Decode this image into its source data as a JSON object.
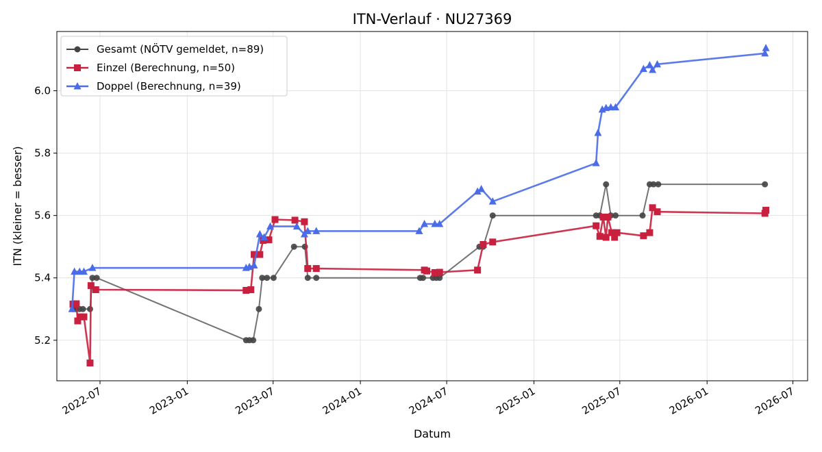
{
  "chart_data": {
    "type": "line",
    "title": "ITN-Verlauf · NU27369",
    "xlabel": "Datum",
    "ylabel": "ITN  (kleiner = besser)",
    "xlim": [
      "2022-04-01",
      "2026-08-01"
    ],
    "ylim": [
      5.07,
      6.19
    ],
    "x_ticks": [
      "2022-07-01",
      "2023-01-01",
      "2023-07-01",
      "2024-01-01",
      "2024-07-01",
      "2025-01-01",
      "2025-07-01",
      "2026-01-01",
      "2026-07-01"
    ],
    "x_tick_labels": [
      "2022-07",
      "2023-01",
      "2023-07",
      "2024-01",
      "2024-07",
      "2025-01",
      "2025-07",
      "2026-01",
      "2026-07"
    ],
    "y_ticks": [
      5.2,
      5.4,
      5.6,
      5.8,
      6.0
    ],
    "y_tick_labels": [
      "5.2",
      "5.4",
      "5.6",
      "5.8",
      "6.0"
    ],
    "grid": true,
    "legend_position": "top-left",
    "series": [
      {
        "name": "Gesamt (NÖTV gemeldet, n=89)",
        "color": "#444444",
        "marker": "circle",
        "points": [
          [
            "2022-05-05",
            5.3
          ],
          [
            "2022-05-10",
            5.3
          ],
          [
            "2022-05-19",
            5.3
          ],
          [
            "2022-05-26",
            5.3
          ],
          [
            "2022-06-10",
            5.3
          ],
          [
            "2022-06-15",
            5.4
          ],
          [
            "2022-06-24",
            5.4
          ],
          [
            "2023-05-05",
            5.2
          ],
          [
            "2023-05-12",
            5.2
          ],
          [
            "2023-05-20",
            5.2
          ],
          [
            "2023-06-01",
            5.3
          ],
          [
            "2023-06-08",
            5.4
          ],
          [
            "2023-06-18",
            5.4
          ],
          [
            "2023-07-02",
            5.4
          ],
          [
            "2023-08-14",
            5.5
          ],
          [
            "2023-09-06",
            5.5
          ],
          [
            "2023-09-12",
            5.4
          ],
          [
            "2023-09-30",
            5.4
          ],
          [
            "2024-05-06",
            5.4
          ],
          [
            "2024-05-12",
            5.4
          ],
          [
            "2024-06-02",
            5.4
          ],
          [
            "2024-06-09",
            5.4
          ],
          [
            "2024-06-16",
            5.4
          ],
          [
            "2024-09-08",
            5.5
          ],
          [
            "2024-09-16",
            5.5
          ],
          [
            "2024-10-06",
            5.6
          ],
          [
            "2025-05-12",
            5.6
          ],
          [
            "2025-05-20",
            5.6
          ],
          [
            "2025-06-02",
            5.7
          ],
          [
            "2025-06-12",
            5.6
          ],
          [
            "2025-06-22",
            5.6
          ],
          [
            "2025-08-18",
            5.6
          ],
          [
            "2025-09-02",
            5.7
          ],
          [
            "2025-09-10",
            5.7
          ],
          [
            "2025-09-20",
            5.7
          ],
          [
            "2026-05-03",
            5.7
          ]
        ]
      },
      {
        "name": "Einzel (Berechnung, n=50)",
        "color": "#c8203e",
        "marker": "square",
        "points": [
          [
            "2022-05-05",
            5.316
          ],
          [
            "2022-05-12",
            5.317
          ],
          [
            "2022-05-15",
            5.262
          ],
          [
            "2022-05-20",
            5.275
          ],
          [
            "2022-05-28",
            5.275
          ],
          [
            "2022-06-10",
            5.127
          ],
          [
            "2022-06-12",
            5.375
          ],
          [
            "2022-06-22",
            5.362
          ],
          [
            "2023-05-05",
            5.36
          ],
          [
            "2023-05-15",
            5.362
          ],
          [
            "2023-05-22",
            5.475
          ],
          [
            "2023-06-03",
            5.475
          ],
          [
            "2023-06-10",
            5.52
          ],
          [
            "2023-06-22",
            5.522
          ],
          [
            "2023-07-05",
            5.587
          ],
          [
            "2023-08-16",
            5.585
          ],
          [
            "2023-09-05",
            5.58
          ],
          [
            "2023-09-12",
            5.43
          ],
          [
            "2023-09-30",
            5.43
          ],
          [
            "2024-05-15",
            5.425
          ],
          [
            "2024-05-20",
            5.422
          ],
          [
            "2024-06-06",
            5.417
          ],
          [
            "2024-06-16",
            5.418
          ],
          [
            "2024-09-04",
            5.425
          ],
          [
            "2024-09-16",
            5.507
          ],
          [
            "2024-10-06",
            5.515
          ],
          [
            "2025-05-12",
            5.567
          ],
          [
            "2025-05-20",
            5.533
          ],
          [
            "2025-05-27",
            5.595
          ],
          [
            "2025-06-02",
            5.53
          ],
          [
            "2025-06-06",
            5.595
          ],
          [
            "2025-06-14",
            5.545
          ],
          [
            "2025-06-20",
            5.53
          ],
          [
            "2025-06-25",
            5.545
          ],
          [
            "2025-08-20",
            5.535
          ],
          [
            "2025-09-02",
            5.545
          ],
          [
            "2025-09-08",
            5.625
          ],
          [
            "2025-09-18",
            5.612
          ],
          [
            "2026-05-03",
            5.607
          ],
          [
            "2026-05-05",
            5.617
          ]
        ]
      },
      {
        "name": "Doppel (Berechnung, n=39)",
        "color": "#4a6ce8",
        "marker": "triangle",
        "points": [
          [
            "2022-05-03",
            5.3
          ],
          [
            "2022-05-08",
            5.42
          ],
          [
            "2022-05-19",
            5.42
          ],
          [
            "2022-05-28",
            5.42
          ],
          [
            "2022-06-15",
            5.432
          ],
          [
            "2023-05-05",
            5.432
          ],
          [
            "2023-05-12",
            5.435
          ],
          [
            "2023-05-22",
            5.44
          ],
          [
            "2023-06-03",
            5.54
          ],
          [
            "2023-06-12",
            5.53
          ],
          [
            "2023-06-25",
            5.565
          ],
          [
            "2023-08-20",
            5.565
          ],
          [
            "2023-09-05",
            5.54
          ],
          [
            "2023-09-12",
            5.55
          ],
          [
            "2023-09-30",
            5.55
          ],
          [
            "2024-05-04",
            5.55
          ],
          [
            "2024-05-15",
            5.573
          ],
          [
            "2024-06-06",
            5.573
          ],
          [
            "2024-06-16",
            5.573
          ],
          [
            "2024-09-04",
            5.677
          ],
          [
            "2024-09-12",
            5.685
          ],
          [
            "2024-10-06",
            5.645
          ],
          [
            "2025-05-12",
            5.768
          ],
          [
            "2025-05-16",
            5.865
          ],
          [
            "2025-05-25",
            5.94
          ],
          [
            "2025-06-02",
            5.945
          ],
          [
            "2025-06-12",
            5.947
          ],
          [
            "2025-06-22",
            5.947
          ],
          [
            "2025-08-20",
            6.07
          ],
          [
            "2025-09-02",
            6.082
          ],
          [
            "2025-09-08",
            6.067
          ],
          [
            "2025-09-18",
            6.085
          ],
          [
            "2026-05-03",
            6.12
          ],
          [
            "2026-05-05",
            6.137
          ]
        ]
      }
    ]
  }
}
